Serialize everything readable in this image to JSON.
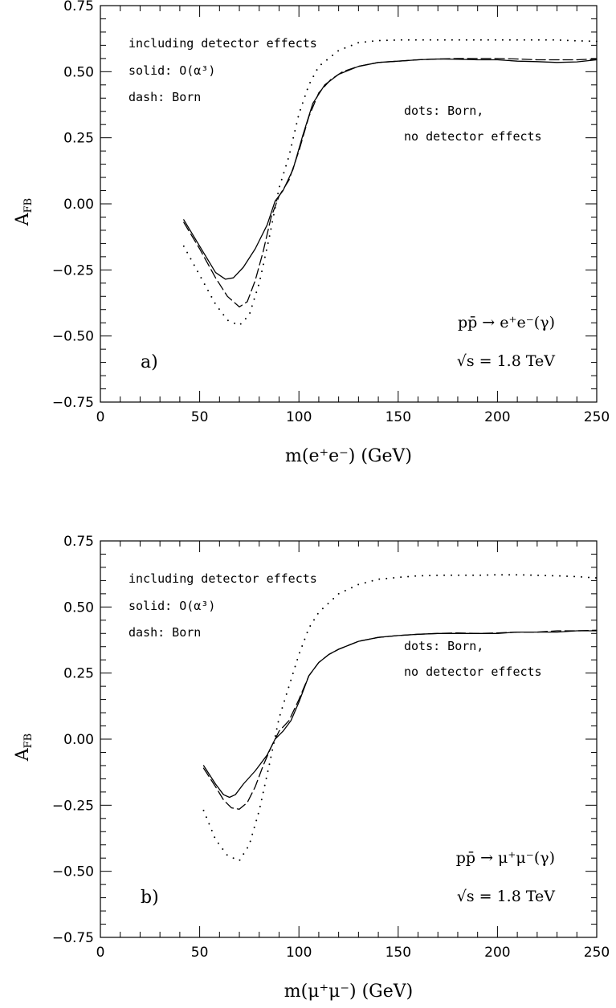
{
  "chart_data": [
    {
      "type": "line",
      "panel_label": "a)",
      "xlabel": "m(e⁺e⁻)  (GeV)",
      "ylabel": "A",
      "ylabel_sub": "FB",
      "xlim": [
        0,
        250
      ],
      "ylim": [
        -0.75,
        0.75
      ],
      "xticks": [
        0,
        50,
        100,
        150,
        200,
        250
      ],
      "yticks": [
        -0.75,
        -0.5,
        -0.25,
        0.0,
        0.25,
        0.5,
        0.75
      ],
      "xtick_labels": [
        "0",
        "50",
        "100",
        "150",
        "200",
        "250"
      ],
      "ytick_labels": [
        "−0.75",
        "−0.50",
        "−0.25",
        "0.00",
        "0.25",
        "0.50",
        "0.75"
      ],
      "annotations": {
        "line1": "including detector effects",
        "line2": "solid: O(α³)",
        "line3": "dash: Born",
        "dots1": "dots: Born,",
        "dots2": "no detector effects",
        "process": "pp̄ → e⁺e⁻(γ)",
        "energy": "√s  =  1.8  TeV"
      },
      "series": [
        {
          "name": "solid: O(α³)",
          "style": "solid",
          "x": [
            42,
            50,
            58,
            63,
            67,
            72,
            78,
            84,
            88,
            92,
            97,
            102,
            107,
            113,
            120,
            130,
            140,
            150,
            160,
            170,
            180,
            190,
            200,
            210,
            220,
            230,
            240,
            250
          ],
          "y": [
            -0.06,
            -0.16,
            -0.26,
            -0.285,
            -0.28,
            -0.24,
            -0.17,
            -0.08,
            0.01,
            0.05,
            0.13,
            0.26,
            0.38,
            0.45,
            0.49,
            0.52,
            0.535,
            0.54,
            0.545,
            0.548,
            0.547,
            0.545,
            0.545,
            0.54,
            0.538,
            0.535,
            0.537,
            0.545
          ]
        },
        {
          "name": "dash: Born",
          "style": "dash",
          "x": [
            42,
            50,
            58,
            64,
            70,
            74,
            78,
            82,
            86,
            90,
            95,
            100,
            105,
            110,
            116,
            122,
            130,
            140,
            150,
            160,
            170,
            180,
            190,
            200,
            210,
            220,
            230,
            240,
            250
          ],
          "y": [
            -0.07,
            -0.17,
            -0.28,
            -0.35,
            -0.39,
            -0.37,
            -0.29,
            -0.18,
            -0.05,
            0.03,
            0.09,
            0.2,
            0.33,
            0.42,
            0.47,
            0.5,
            0.52,
            0.535,
            0.54,
            0.545,
            0.548,
            0.55,
            0.55,
            0.55,
            0.548,
            0.545,
            0.545,
            0.545,
            0.548
          ]
        },
        {
          "name": "dots: Born, no detector effects",
          "style": "dots",
          "x": [
            42,
            50,
            58,
            64,
            70,
            75,
            80,
            85,
            90,
            95,
            100,
            105,
            110,
            120,
            130,
            140,
            150,
            160,
            170,
            180,
            190,
            200,
            210,
            220,
            230,
            240,
            250
          ],
          "y": [
            -0.16,
            -0.27,
            -0.38,
            -0.44,
            -0.46,
            -0.42,
            -0.3,
            -0.13,
            0.06,
            0.18,
            0.34,
            0.45,
            0.52,
            0.58,
            0.61,
            0.618,
            0.62,
            0.62,
            0.62,
            0.62,
            0.62,
            0.62,
            0.62,
            0.62,
            0.62,
            0.617,
            0.615
          ]
        }
      ]
    },
    {
      "type": "line",
      "panel_label": "b)",
      "xlabel": "m(μ⁺μ⁻)  (GeV)",
      "ylabel": "A",
      "ylabel_sub": "FB",
      "xlim": [
        0,
        250
      ],
      "ylim": [
        -0.75,
        0.75
      ],
      "xticks": [
        0,
        50,
        100,
        150,
        200,
        250
      ],
      "yticks": [
        -0.75,
        -0.5,
        -0.25,
        0.0,
        0.25,
        0.5,
        0.75
      ],
      "xtick_labels": [
        "0",
        "50",
        "100",
        "150",
        "200",
        "250"
      ],
      "ytick_labels": [
        "−0.75",
        "−0.50",
        "−0.25",
        "0.00",
        "0.25",
        "0.50",
        "0.75"
      ],
      "annotations": {
        "line1": "including detector effects",
        "line2": "solid: O(α³)",
        "line3": "dash: Born",
        "dots1": "dots: Born,",
        "dots2": "no detector effects",
        "process": "pp̄ → μ⁺μ⁻(γ)",
        "energy": "√s  =  1.8  TeV"
      },
      "series": [
        {
          "name": "solid: O(α³)",
          "style": "solid",
          "x": [
            52,
            58,
            62,
            65,
            68,
            72,
            78,
            84,
            88,
            92,
            96,
            100,
            105,
            110,
            115,
            120,
            130,
            140,
            150,
            160,
            170,
            180,
            190,
            200,
            210,
            220,
            230,
            240,
            250
          ],
          "y": [
            -0.1,
            -0.17,
            -0.21,
            -0.22,
            -0.21,
            -0.17,
            -0.12,
            -0.06,
            0.0,
            0.03,
            0.07,
            0.14,
            0.24,
            0.29,
            0.32,
            0.34,
            0.37,
            0.385,
            0.392,
            0.397,
            0.4,
            0.4,
            0.4,
            0.4,
            0.405,
            0.405,
            0.405,
            0.41,
            0.41
          ]
        },
        {
          "name": "dash: Born",
          "style": "dash",
          "x": [
            52,
            58,
            62,
            66,
            70,
            74,
            78,
            82,
            86,
            90,
            95,
            100,
            105,
            110,
            115,
            120,
            130,
            140,
            150,
            160,
            170,
            180,
            190,
            200,
            210,
            220,
            230,
            240,
            250
          ],
          "y": [
            -0.11,
            -0.18,
            -0.23,
            -0.26,
            -0.265,
            -0.24,
            -0.18,
            -0.1,
            -0.03,
            0.03,
            0.07,
            0.15,
            0.24,
            0.29,
            0.32,
            0.34,
            0.37,
            0.385,
            0.392,
            0.397,
            0.4,
            0.402,
            0.4,
            0.402,
            0.405,
            0.405,
            0.41,
            0.41,
            0.412
          ]
        },
        {
          "name": "dots: Born, no detector effects",
          "style": "dots",
          "x": [
            52,
            58,
            64,
            70,
            75,
            80,
            85,
            90,
            95,
            100,
            105,
            110,
            120,
            130,
            140,
            150,
            160,
            170,
            180,
            190,
            200,
            210,
            220,
            230,
            240,
            250
          ],
          "y": [
            -0.27,
            -0.38,
            -0.44,
            -0.46,
            -0.4,
            -0.27,
            -0.1,
            0.08,
            0.2,
            0.32,
            0.42,
            0.48,
            0.55,
            0.585,
            0.605,
            0.612,
            0.618,
            0.62,
            0.62,
            0.62,
            0.622,
            0.622,
            0.62,
            0.618,
            0.615,
            0.61
          ]
        }
      ]
    }
  ]
}
